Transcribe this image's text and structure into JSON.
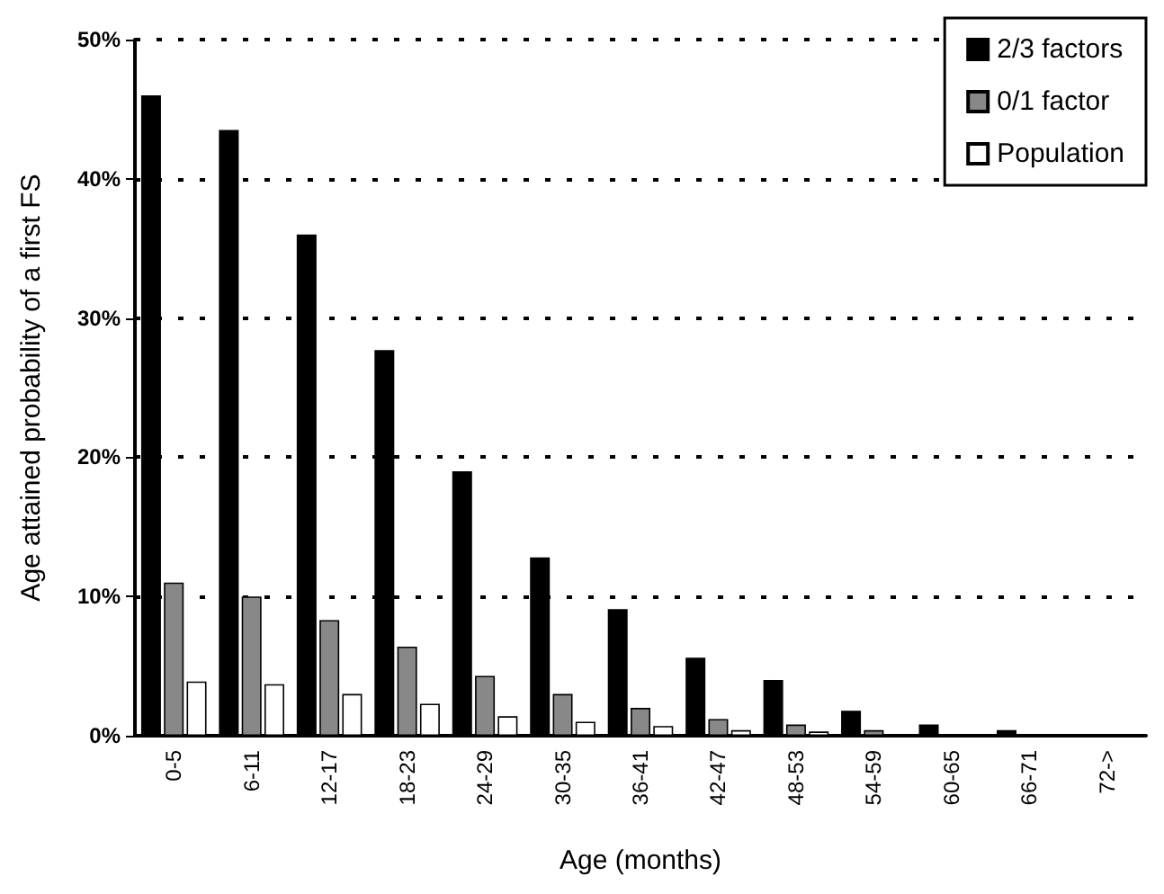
{
  "chart_data": {
    "type": "bar",
    "xlabel": "Age (months)",
    "ylabel": "Age attained probability of a first FS",
    "categories": [
      "0-5",
      "6-11",
      "12-17",
      "18-23",
      "24-29",
      "30-35",
      "36-41",
      "42-47",
      "48-53",
      "54-59",
      "60-65",
      "66-71",
      "72->"
    ],
    "series": [
      {
        "name": "2/3 factors",
        "color": "#000000",
        "values": [
          46,
          43.5,
          36,
          27.7,
          19,
          12.8,
          9.1,
          5.6,
          4.0,
          1.8,
          0.8,
          0.4,
          0
        ]
      },
      {
        "name": "0/1 factor",
        "color": "#888888",
        "values": [
          11,
          10,
          8.3,
          6.4,
          4.3,
          3.0,
          2.0,
          1.2,
          0.8,
          0.4,
          0,
          0,
          0
        ]
      },
      {
        "name": "Population",
        "color": "#ffffff",
        "values": [
          3.9,
          3.7,
          3.0,
          2.3,
          1.4,
          1.0,
          0.7,
          0.4,
          0.3,
          0,
          0,
          0,
          0
        ]
      }
    ],
    "ylim": [
      0,
      50
    ],
    "yticks": [
      {
        "value": 0,
        "label": "0%"
      },
      {
        "value": 10,
        "label": "10%"
      },
      {
        "value": 20,
        "label": "20%"
      },
      {
        "value": 30,
        "label": "30%"
      },
      {
        "value": 40,
        "label": "40%"
      },
      {
        "value": 50,
        "label": "50%"
      }
    ],
    "grid": "y",
    "legend": "top right"
  }
}
